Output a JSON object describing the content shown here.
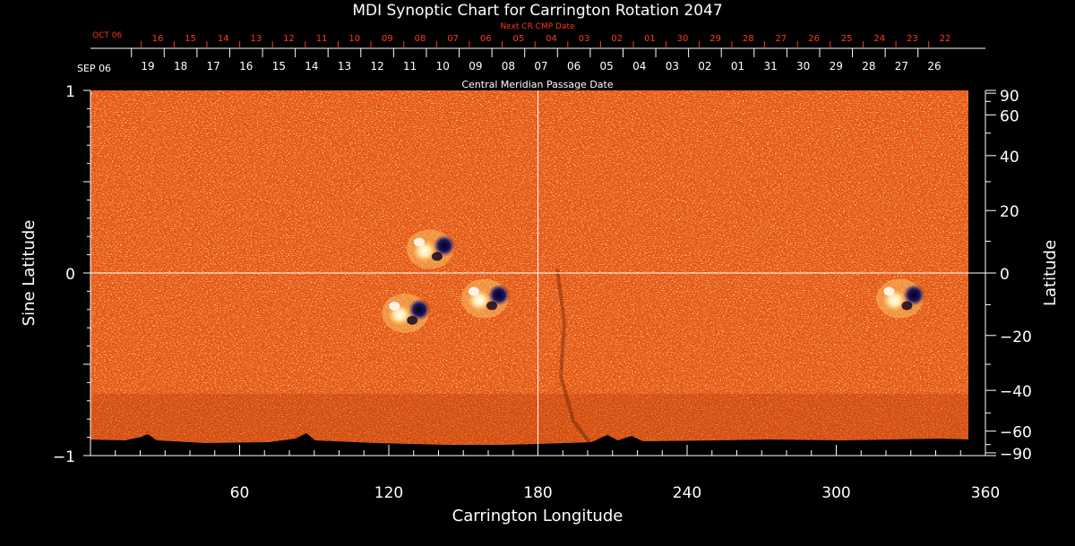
{
  "chart_data": {
    "type": "heatmap",
    "title": "MDI Synoptic Chart for Carrington Rotation 2047",
    "xlabel": "Carrington Longitude",
    "ylabel_left": "Sine Latitude",
    "ylabel_right": "Latitude",
    "xlim": [
      0,
      360
    ],
    "ylim": [
      -1,
      1
    ],
    "x_ticks": [
      60,
      120,
      180,
      240,
      300,
      360
    ],
    "y_ticks_left": [
      {
        "v": 1,
        "label": "1"
      },
      {
        "v": 0,
        "label": "0"
      },
      {
        "v": -1,
        "label": "−1"
      }
    ],
    "y_ticks_right": [
      {
        "deg": 90,
        "label": "90"
      },
      {
        "deg": 60,
        "label": "60"
      },
      {
        "deg": 40,
        "label": "40"
      },
      {
        "deg": 20,
        "label": "20"
      },
      {
        "deg": 0,
        "label": "0"
      },
      {
        "deg": -20,
        "label": "−20"
      },
      {
        "deg": -40,
        "label": "−40"
      },
      {
        "deg": -60,
        "label": "−60"
      },
      {
        "deg": -90,
        "label": "−90"
      }
    ],
    "top_axis_label": "Central Meridian Passage Date",
    "top_axis_month_label": "SEP 06",
    "top_axis_dates": [
      "19",
      "18",
      "17",
      "16",
      "15",
      "14",
      "13",
      "12",
      "11",
      "10",
      "09",
      "08",
      "07",
      "06",
      "05",
      "04",
      "03",
      "02",
      "01",
      "31",
      "30",
      "29",
      "28",
      "27",
      "26"
    ],
    "next_cr_label": "Next CR CMP Date",
    "next_cr_month_label": "OCT 06",
    "next_cr_dates": [
      "16",
      "15",
      "14",
      "13",
      "12",
      "11",
      "10",
      "09",
      "08",
      "07",
      "06",
      "05",
      "04",
      "03",
      "02",
      "01",
      "30",
      "29",
      "28",
      "27",
      "26",
      "25",
      "24",
      "23",
      "22"
    ],
    "crosshair": {
      "longitude": 180,
      "sine_latitude": 0
    },
    "active_regions": [
      {
        "longitude": 128,
        "sine_latitude": -0.22
      },
      {
        "longitude": 160,
        "sine_latitude": -0.14
      },
      {
        "longitude": 138,
        "sine_latitude": 0.13
      },
      {
        "longitude": 327,
        "sine_latitude": -0.14
      }
    ],
    "colors": {
      "background_field": "#e85a10",
      "positive": "#fff6c8",
      "negative": "#10104a"
    }
  }
}
